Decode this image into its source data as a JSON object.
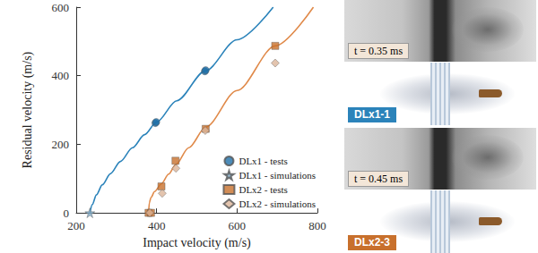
{
  "chart_data": {
    "type": "scatter",
    "xlabel": "Impact velocity (m/s)",
    "ylabel": "Residual velocity (m/s)",
    "xlim": [
      200,
      800
    ],
    "xticks": [
      200,
      400,
      600,
      800
    ],
    "ylim": [
      0,
      600
    ],
    "yticks": [
      0,
      200,
      400,
      600
    ],
    "grid": false,
    "legend": "lower right",
    "series": [
      {
        "type": "line",
        "line_style": "solid",
        "color": "#2b83ba",
        "x": [
          234,
          240,
          250,
          265,
          285,
          310,
          340,
          370,
          400,
          450,
          521,
          600,
          690
        ],
        "values": [
          0,
          24,
          52,
          82,
          114,
          150,
          190,
          228,
          265,
          327,
          414,
          505,
          600
        ]
      },
      {
        "type": "line",
        "line_style": "solid",
        "color": "#e08a4a",
        "x": [
          380,
          382,
          386,
          395,
          412,
          430,
          447,
          480,
          522,
          600,
          695,
          790
        ],
        "values": [
          0,
          30,
          45,
          62,
          85,
          113,
          140,
          190,
          250,
          357,
          487,
          600
        ]
      },
      {
        "name": "DLx1 - tests",
        "type": "scatter",
        "marker": "circle",
        "color": "#1f6fa8",
        "x": [
          397,
          399,
          520,
          522
        ],
        "values": [
          262,
          265,
          413,
          416
        ]
      },
      {
        "name": "DLx1 - simulations",
        "type": "scatter",
        "marker": "star",
        "color": "#7fa9c4",
        "x": [
          234
        ],
        "values": [
          0
        ]
      },
      {
        "name": "DLx2 - tests",
        "type": "scatter",
        "marker": "square",
        "color": "#c8702c",
        "x": [
          380,
          386,
          412,
          447,
          522,
          695
        ],
        "values": [
          0,
          0,
          77,
          152,
          245,
          487
        ]
      },
      {
        "name": "DLx2 - simulations",
        "type": "scatter",
        "marker": "diamond",
        "color": "#dcb59a",
        "x": [
          383,
          414,
          448,
          521,
          695
        ],
        "values": [
          0,
          57,
          130,
          240,
          437
        ]
      }
    ]
  },
  "panels": [
    {
      "caption": "t = 0.35 ms",
      "specimen": "DLx1-1"
    },
    {
      "caption": "t = 0.45 ms",
      "specimen": "DLx2-3"
    }
  ]
}
